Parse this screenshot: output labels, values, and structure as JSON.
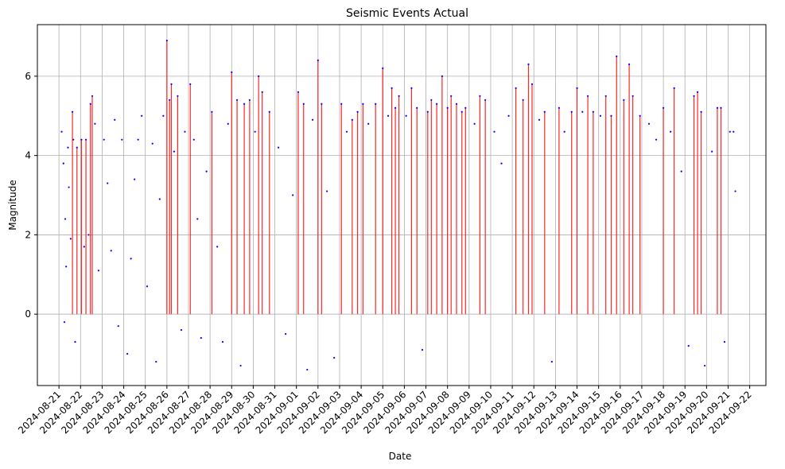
{
  "chart_data": {
    "type": "scatter",
    "title": "Seismic Events Actual",
    "xlabel": "Date",
    "ylabel": "Magnitude",
    "grid": true,
    "xlim": [
      "2024-08-20T00:00",
      "2024-09-22T18:00"
    ],
    "ylim": [
      -1.8,
      7.3
    ],
    "x_ticks": [
      "2024-08-21",
      "2024-08-22",
      "2024-08-23",
      "2024-08-24",
      "2024-08-25",
      "2024-08-26",
      "2024-08-27",
      "2024-08-28",
      "2024-08-29",
      "2024-08-30",
      "2024-08-31",
      "2024-09-01",
      "2024-09-02",
      "2024-09-03",
      "2024-09-04",
      "2024-09-05",
      "2024-09-06",
      "2024-09-07",
      "2024-09-08",
      "2024-09-09",
      "2024-09-10",
      "2024-09-11",
      "2024-09-12",
      "2024-09-13",
      "2024-09-14",
      "2024-09-15",
      "2024-09-16",
      "2024-09-17",
      "2024-09-18",
      "2024-09-19",
      "2024-09-20",
      "2024-09-21",
      "2024-09-22"
    ],
    "y_ticks": [
      0,
      2,
      4,
      6
    ],
    "colors": {
      "points": "#0000ff",
      "stems": "#ff0000"
    },
    "series": [
      {
        "values": [
          [
            "2024-08-21T03:00",
            4.6
          ],
          [
            "2024-08-21T05:00",
            3.8
          ],
          [
            "2024-08-21T06:00",
            -0.2
          ],
          [
            "2024-08-21T07:00",
            2.4
          ],
          [
            "2024-08-21T08:00",
            1.2
          ],
          [
            "2024-08-21T10:00",
            4.2
          ],
          [
            "2024-08-21T11:00",
            3.2
          ],
          [
            "2024-08-21T13:00",
            1.9
          ],
          [
            "2024-08-21T15:00",
            5.1
          ],
          [
            "2024-08-21T16:00",
            4.4
          ],
          [
            "2024-08-21T18:00",
            -0.7
          ],
          [
            "2024-08-21T20:00",
            4.2
          ],
          [
            "2024-08-22T01:00",
            4.4
          ],
          [
            "2024-08-22T04:00",
            1.7
          ],
          [
            "2024-08-22T06:00",
            4.4
          ],
          [
            "2024-08-22T09:00",
            2.0
          ],
          [
            "2024-08-22T11:00",
            5.3
          ],
          [
            "2024-08-22T13:00",
            5.5
          ],
          [
            "2024-08-22T16:00",
            4.8
          ],
          [
            "2024-08-22T20:00",
            1.1
          ],
          [
            "2024-08-23T02:00",
            4.4
          ],
          [
            "2024-08-23T06:00",
            3.3
          ],
          [
            "2024-08-23T10:00",
            1.6
          ],
          [
            "2024-08-23T14:00",
            4.9
          ],
          [
            "2024-08-23T18:00",
            -0.3
          ],
          [
            "2024-08-23T22:00",
            4.4
          ],
          [
            "2024-08-24T04:00",
            -1.0
          ],
          [
            "2024-08-24T08:00",
            1.4
          ],
          [
            "2024-08-24T12:00",
            3.4
          ],
          [
            "2024-08-24T16:00",
            4.4
          ],
          [
            "2024-08-24T20:00",
            5.0
          ],
          [
            "2024-08-25T02:00",
            0.7
          ],
          [
            "2024-08-25T08:00",
            4.3
          ],
          [
            "2024-08-25T12:00",
            -1.2
          ],
          [
            "2024-08-25T16:00",
            2.9
          ],
          [
            "2024-08-25T20:00",
            5.0
          ],
          [
            "2024-08-26T00:00",
            6.9
          ],
          [
            "2024-08-26T03:00",
            5.4
          ],
          [
            "2024-08-26T05:00",
            5.8
          ],
          [
            "2024-08-26T08:00",
            4.1
          ],
          [
            "2024-08-26T12:00",
            5.5
          ],
          [
            "2024-08-26T16:00",
            -0.4
          ],
          [
            "2024-08-26T20:00",
            4.6
          ],
          [
            "2024-08-27T02:00",
            5.8
          ],
          [
            "2024-08-27T06:00",
            4.4
          ],
          [
            "2024-08-27T10:00",
            2.4
          ],
          [
            "2024-08-27T14:00",
            -0.6
          ],
          [
            "2024-08-27T20:00",
            3.6
          ],
          [
            "2024-08-28T02:00",
            5.1
          ],
          [
            "2024-08-28T08:00",
            1.7
          ],
          [
            "2024-08-28T14:00",
            -0.7
          ],
          [
            "2024-08-28T20:00",
            4.8
          ],
          [
            "2024-08-29T00:00",
            6.1
          ],
          [
            "2024-08-29T06:00",
            5.4
          ],
          [
            "2024-08-29T10:00",
            -1.3
          ],
          [
            "2024-08-29T14:00",
            5.3
          ],
          [
            "2024-08-29T20:00",
            5.4
          ],
          [
            "2024-08-30T02:00",
            4.6
          ],
          [
            "2024-08-30T06:00",
            6.0
          ],
          [
            "2024-08-30T10:00",
            5.6
          ],
          [
            "2024-08-30T18:00",
            5.1
          ],
          [
            "2024-08-31T04:00",
            4.2
          ],
          [
            "2024-08-31T12:00",
            -0.5
          ],
          [
            "2024-08-31T20:00",
            3.0
          ],
          [
            "2024-09-01T02:00",
            5.6
          ],
          [
            "2024-09-01T08:00",
            5.3
          ],
          [
            "2024-09-01T12:00",
            -1.4
          ],
          [
            "2024-09-01T18:00",
            4.9
          ],
          [
            "2024-09-02T00:00",
            6.4
          ],
          [
            "2024-09-02T04:00",
            5.3
          ],
          [
            "2024-09-02T10:00",
            3.1
          ],
          [
            "2024-09-02T18:00",
            -1.1
          ],
          [
            "2024-09-03T02:00",
            5.3
          ],
          [
            "2024-09-03T08:00",
            4.6
          ],
          [
            "2024-09-03T14:00",
            4.9
          ],
          [
            "2024-09-03T20:00",
            5.1
          ],
          [
            "2024-09-04T02:00",
            5.3
          ],
          [
            "2024-09-04T08:00",
            4.8
          ],
          [
            "2024-09-04T16:00",
            5.3
          ],
          [
            "2024-09-05T00:00",
            6.2
          ],
          [
            "2024-09-05T06:00",
            5.0
          ],
          [
            "2024-09-05T10:00",
            5.7
          ],
          [
            "2024-09-05T14:00",
            5.2
          ],
          [
            "2024-09-05T18:00",
            5.5
          ],
          [
            "2024-09-06T02:00",
            5.0
          ],
          [
            "2024-09-06T08:00",
            5.7
          ],
          [
            "2024-09-06T14:00",
            5.2
          ],
          [
            "2024-09-06T20:00",
            -0.9
          ],
          [
            "2024-09-07T02:00",
            5.1
          ],
          [
            "2024-09-07T06:00",
            5.4
          ],
          [
            "2024-09-07T12:00",
            5.3
          ],
          [
            "2024-09-07T18:00",
            6.0
          ],
          [
            "2024-09-08T00:00",
            5.2
          ],
          [
            "2024-09-08T04:00",
            5.5
          ],
          [
            "2024-09-08T10:00",
            5.3
          ],
          [
            "2024-09-08T16:00",
            5.1
          ],
          [
            "2024-09-08T20:00",
            5.2
          ],
          [
            "2024-09-09T06:00",
            4.8
          ],
          [
            "2024-09-09T12:00",
            5.5
          ],
          [
            "2024-09-09T18:00",
            5.4
          ],
          [
            "2024-09-10T04:00",
            4.6
          ],
          [
            "2024-09-10T12:00",
            3.8
          ],
          [
            "2024-09-10T20:00",
            5.0
          ],
          [
            "2024-09-11T04:00",
            5.7
          ],
          [
            "2024-09-11T12:00",
            5.4
          ],
          [
            "2024-09-11T18:00",
            6.3
          ],
          [
            "2024-09-11T22:00",
            5.8
          ],
          [
            "2024-09-12T06:00",
            4.9
          ],
          [
            "2024-09-12T12:00",
            5.1
          ],
          [
            "2024-09-12T20:00",
            -1.2
          ],
          [
            "2024-09-13T04:00",
            5.2
          ],
          [
            "2024-09-13T10:00",
            4.6
          ],
          [
            "2024-09-13T18:00",
            5.1
          ],
          [
            "2024-09-14T00:00",
            5.7
          ],
          [
            "2024-09-14T06:00",
            5.1
          ],
          [
            "2024-09-14T12:00",
            5.5
          ],
          [
            "2024-09-14T18:00",
            5.1
          ],
          [
            "2024-09-15T02:00",
            5.0
          ],
          [
            "2024-09-15T08:00",
            5.5
          ],
          [
            "2024-09-15T14:00",
            5.0
          ],
          [
            "2024-09-15T20:00",
            6.5
          ],
          [
            "2024-09-16T04:00",
            5.4
          ],
          [
            "2024-09-16T10:00",
            6.3
          ],
          [
            "2024-09-16T14:00",
            5.5
          ],
          [
            "2024-09-16T22:00",
            5.0
          ],
          [
            "2024-09-17T08:00",
            4.8
          ],
          [
            "2024-09-17T16:00",
            4.4
          ],
          [
            "2024-09-18T00:00",
            5.2
          ],
          [
            "2024-09-18T08:00",
            4.6
          ],
          [
            "2024-09-18T12:00",
            5.7
          ],
          [
            "2024-09-18T20:00",
            3.6
          ],
          [
            "2024-09-19T04:00",
            -0.8
          ],
          [
            "2024-09-19T10:00",
            5.5
          ],
          [
            "2024-09-19T14:00",
            5.6
          ],
          [
            "2024-09-19T18:00",
            5.1
          ],
          [
            "2024-09-19T22:00",
            -1.3
          ],
          [
            "2024-09-20T06:00",
            4.1
          ],
          [
            "2024-09-20T12:00",
            5.2
          ],
          [
            "2024-09-20T16:00",
            5.2
          ],
          [
            "2024-09-20T20:00",
            -0.7
          ],
          [
            "2024-09-21T02:00",
            4.6
          ],
          [
            "2024-09-21T06:00",
            4.6
          ],
          [
            "2024-09-21T08:00",
            3.1
          ]
        ]
      }
    ],
    "stems": [
      [
        "2024-08-21T15:00",
        5.1
      ],
      [
        "2024-08-21T20:00",
        4.2
      ],
      [
        "2024-08-22T01:00",
        4.4
      ],
      [
        "2024-08-22T06:00",
        4.4
      ],
      [
        "2024-08-22T11:00",
        5.3
      ],
      [
        "2024-08-22T13:00",
        5.5
      ],
      [
        "2024-08-26T00:00",
        6.9
      ],
      [
        "2024-08-26T03:00",
        5.4
      ],
      [
        "2024-08-26T05:00",
        5.8
      ],
      [
        "2024-08-26T12:00",
        5.5
      ],
      [
        "2024-08-27T02:00",
        5.8
      ],
      [
        "2024-08-28T02:00",
        5.1
      ],
      [
        "2024-08-29T00:00",
        6.1
      ],
      [
        "2024-08-29T06:00",
        5.4
      ],
      [
        "2024-08-29T14:00",
        5.3
      ],
      [
        "2024-08-29T20:00",
        5.4
      ],
      [
        "2024-08-30T06:00",
        6.0
      ],
      [
        "2024-08-30T10:00",
        5.6
      ],
      [
        "2024-08-30T18:00",
        5.1
      ],
      [
        "2024-09-01T02:00",
        5.6
      ],
      [
        "2024-09-01T08:00",
        5.3
      ],
      [
        "2024-09-02T00:00",
        6.4
      ],
      [
        "2024-09-02T04:00",
        5.3
      ],
      [
        "2024-09-03T02:00",
        5.3
      ],
      [
        "2024-09-03T14:00",
        4.9
      ],
      [
        "2024-09-03T20:00",
        5.1
      ],
      [
        "2024-09-04T02:00",
        5.3
      ],
      [
        "2024-09-04T16:00",
        5.3
      ],
      [
        "2024-09-05T00:00",
        6.2
      ],
      [
        "2024-09-05T10:00",
        5.7
      ],
      [
        "2024-09-05T14:00",
        5.2
      ],
      [
        "2024-09-05T18:00",
        5.5
      ],
      [
        "2024-09-06T08:00",
        5.7
      ],
      [
        "2024-09-06T14:00",
        5.2
      ],
      [
        "2024-09-07T02:00",
        5.1
      ],
      [
        "2024-09-07T06:00",
        5.4
      ],
      [
        "2024-09-07T12:00",
        5.3
      ],
      [
        "2024-09-07T18:00",
        6.0
      ],
      [
        "2024-09-08T00:00",
        5.2
      ],
      [
        "2024-09-08T04:00",
        5.5
      ],
      [
        "2024-09-08T10:00",
        5.3
      ],
      [
        "2024-09-08T16:00",
        5.1
      ],
      [
        "2024-09-08T20:00",
        5.2
      ],
      [
        "2024-09-09T12:00",
        5.5
      ],
      [
        "2024-09-09T18:00",
        5.4
      ],
      [
        "2024-09-11T04:00",
        5.7
      ],
      [
        "2024-09-11T12:00",
        5.4
      ],
      [
        "2024-09-11T18:00",
        6.3
      ],
      [
        "2024-09-11T22:00",
        5.8
      ],
      [
        "2024-09-12T12:00",
        5.1
      ],
      [
        "2024-09-13T04:00",
        5.2
      ],
      [
        "2024-09-13T18:00",
        5.1
      ],
      [
        "2024-09-14T00:00",
        5.7
      ],
      [
        "2024-09-14T12:00",
        5.5
      ],
      [
        "2024-09-14T18:00",
        5.1
      ],
      [
        "2024-09-15T08:00",
        5.5
      ],
      [
        "2024-09-15T14:00",
        5.0
      ],
      [
        "2024-09-15T20:00",
        6.5
      ],
      [
        "2024-09-16T04:00",
        5.4
      ],
      [
        "2024-09-16T10:00",
        6.3
      ],
      [
        "2024-09-16T14:00",
        5.5
      ],
      [
        "2024-09-16T22:00",
        5.0
      ],
      [
        "2024-09-18T00:00",
        5.2
      ],
      [
        "2024-09-18T12:00",
        5.7
      ],
      [
        "2024-09-19T10:00",
        5.5
      ],
      [
        "2024-09-19T14:00",
        5.6
      ],
      [
        "2024-09-19T18:00",
        5.1
      ],
      [
        "2024-09-20T12:00",
        5.2
      ],
      [
        "2024-09-20T16:00",
        5.2
      ]
    ]
  }
}
